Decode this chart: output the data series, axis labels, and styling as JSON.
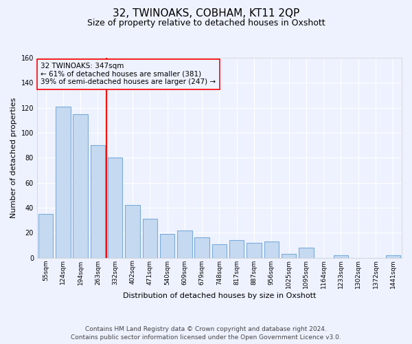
{
  "title": "32, TWINOAKS, COBHAM, KT11 2QP",
  "subtitle": "Size of property relative to detached houses in Oxshott",
  "xlabel": "Distribution of detached houses by size in Oxshott",
  "ylabel": "Number of detached properties",
  "categories": [
    "55sqm",
    "124sqm",
    "194sqm",
    "263sqm",
    "332sqm",
    "402sqm",
    "471sqm",
    "540sqm",
    "609sqm",
    "679sqm",
    "748sqm",
    "817sqm",
    "887sqm",
    "956sqm",
    "1025sqm",
    "1095sqm",
    "1164sqm",
    "1233sqm",
    "1302sqm",
    "1372sqm",
    "1441sqm"
  ],
  "values": [
    35,
    121,
    115,
    90,
    80,
    42,
    31,
    19,
    22,
    16,
    11,
    14,
    12,
    13,
    3,
    8,
    0,
    2,
    0,
    0,
    2
  ],
  "bar_color": "#c5d9f0",
  "bar_edge_color": "#7aabdb",
  "red_line_index": 4,
  "annotation_line1": "32 TWINOAKS: 347sqm",
  "annotation_line2": "← 61% of detached houses are smaller (381)",
  "annotation_line3": "39% of semi-detached houses are larger (247) →",
  "annotation_box_edge_color": "red",
  "ylim": [
    0,
    160
  ],
  "yticks": [
    0,
    20,
    40,
    60,
    80,
    100,
    120,
    140,
    160
  ],
  "footer_line1": "Contains HM Land Registry data © Crown copyright and database right 2024.",
  "footer_line2": "Contains public sector information licensed under the Open Government Licence v3.0.",
  "bg_color": "#eef2ff",
  "grid_color": "#ffffff",
  "title_fontsize": 11,
  "subtitle_fontsize": 9,
  "tick_fontsize": 6.5,
  "ylabel_fontsize": 8,
  "xlabel_fontsize": 8,
  "annotation_fontsize": 7.5,
  "footer_fontsize": 6.5
}
